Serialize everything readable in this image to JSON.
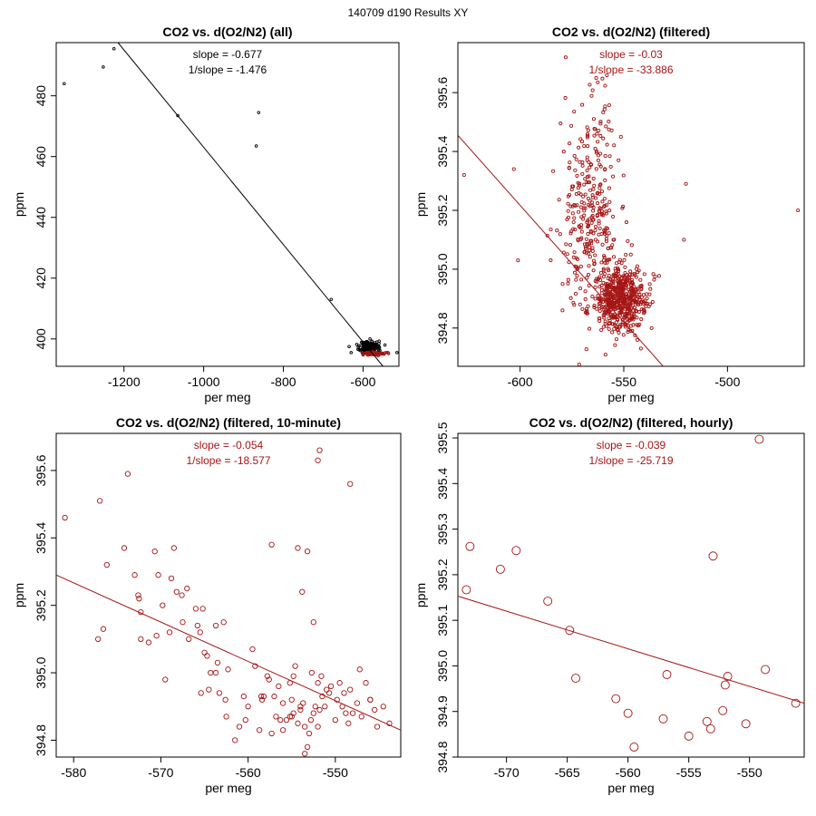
{
  "super_title": "140709   d190   Results XY",
  "colors": {
    "red": "#a51515",
    "black": "#000000"
  },
  "chart_data": [
    {
      "type": "scatter",
      "title": "CO2 vs. d(O2/N2) (all)",
      "xlabel": "per meg",
      "ylabel": "ppm",
      "xlim": [
        -1370,
        -510
      ],
      "ylim": [
        391,
        497.5
      ],
      "xticks": [
        -1200,
        -1000,
        -800,
        -600
      ],
      "yticks": [
        400,
        420,
        440,
        460,
        480
      ],
      "annotations": [
        "slope = -0.677",
        "1/slope = -1.476"
      ],
      "annotation_color": "black",
      "fit_line": {
        "x": [
          -1215,
          -550
        ],
        "y": [
          497.5,
          391
        ],
        "color": "black"
      },
      "series": [
        {
          "name": "all",
          "color": "black",
          "marker_radius": 1.3,
          "x": [
            -1350,
            -1252,
            -1225,
            -1065,
            -862,
            -868,
            -680
          ],
          "y": [
            484,
            489.5,
            495.5,
            473.5,
            474.5,
            463.5,
            413
          ]
        },
        {
          "name": "all-cluster",
          "color": "black",
          "marker_radius": 1.3,
          "cluster": {
            "n": 200,
            "cx": -585,
            "cy": 397.3,
            "sx": 11,
            "sy": 1.0,
            "seed": 11
          },
          "x": [
            -560,
            -565,
            -545,
            -635,
            -630,
            -515
          ],
          "y": [
            398.5,
            399.0,
            398.0,
            397.5,
            395.5,
            395.5
          ]
        },
        {
          "name": "filtered",
          "color": "red",
          "marker_radius": 1.3,
          "cluster": {
            "n": 130,
            "cx": -570,
            "cy": 395.2,
            "sx": 12,
            "sy": 0.25,
            "seed": 12
          },
          "x": [],
          "y": []
        }
      ]
    },
    {
      "type": "scatter",
      "title": "CO2 vs. d(O2/N2) (filtered)",
      "xlabel": "per meg",
      "ylabel": "ppm",
      "xlim": [
        -630,
        -463
      ],
      "ylim": [
        394.67,
        395.77
      ],
      "xticks": [
        -600,
        -550,
        -500
      ],
      "yticks": [
        394.8,
        395.0,
        395.2,
        395.4,
        395.6
      ],
      "ytick_labels": [
        "394.8",
        "395.0",
        "395.2",
        "395.4",
        "395.6"
      ],
      "annotations": [
        "slope = -0.03",
        "1/slope = -33.886"
      ],
      "annotation_color": "red",
      "fit_line": {
        "x": [
          -630,
          -531
        ],
        "y": [
          395.455,
          394.67
        ],
        "color": "red"
      },
      "series": [
        {
          "name": "filtered-dense",
          "color": "red",
          "marker_radius": 1.6,
          "cluster": {
            "n": 520,
            "cx": -551,
            "cy": 394.9,
            "sx": 6.5,
            "sy": 0.055,
            "seed": 21
          },
          "x": [],
          "y": []
        },
        {
          "name": "filtered-spread",
          "color": "red",
          "marker_radius": 1.6,
          "cluster": {
            "n": 330,
            "cx": -566,
            "cy": 395.18,
            "sx": 7,
            "sy": 0.19,
            "seed": 22
          },
          "x": [
            -627,
            -603,
            -601,
            -578,
            -520,
            -521,
            -466
          ],
          "y": [
            395.32,
            395.34,
            395.03,
            395.72,
            395.29,
            395.1,
            395.2
          ]
        }
      ]
    },
    {
      "type": "scatter",
      "title": "CO2 vs. d(O2/N2) (filtered, 10-minute)",
      "xlabel": "per meg",
      "ylabel": "ppm",
      "xlim": [
        -582,
        -542.5
      ],
      "ylim": [
        394.75,
        395.71
      ],
      "xticks": [
        -580,
        -570,
        -560,
        -550
      ],
      "yticks": [
        394.8,
        395.0,
        395.2,
        395.4,
        395.6
      ],
      "ytick_labels": [
        "394.8",
        "395.0",
        "395.2",
        "395.4",
        "395.6"
      ],
      "annotations": [
        "slope = -0.054",
        "1/slope = -18.577"
      ],
      "annotation_color": "red",
      "fit_line": {
        "x": [
          -582,
          -542.5
        ],
        "y": [
          395.29,
          394.83
        ],
        "color": "red"
      },
      "series": [
        {
          "name": "10-minute",
          "color": "red",
          "marker_radius": 2.7,
          "x": [
            -581,
            -577,
            -576.2,
            -573.8,
            -577.2,
            -576.6,
            -574.2,
            -573,
            -572.6,
            -572.5,
            -572.3,
            -570.7,
            -570.5,
            -569.8,
            -569,
            -568.5,
            -568.2,
            -567.6,
            -567,
            -566,
            -565.8,
            -565.5,
            -565.2,
            -565.0,
            -564.7,
            -564.3,
            -563.7,
            -563.5,
            -563.3,
            -562.8,
            -562.6,
            -562.3,
            -572.3,
            -571.4,
            -570.3,
            -569.5,
            -568.8,
            -567.5,
            -566.8,
            -565.4,
            -564.5,
            -563.7,
            -562.5,
            -561.5,
            -561.0,
            -560.5,
            -560.3,
            -560.0,
            -559.5,
            -559.2,
            -558.7,
            -558.4,
            -558.2,
            -557.8,
            -557.3,
            -557.0,
            -556.8,
            -556.5,
            -556.0,
            -555.6,
            -555.2,
            -555.0,
            -554.8,
            -554.6,
            -554.3,
            -554.0,
            -553.7,
            -553.5,
            -553.2,
            -553.0,
            -552.8,
            -552.5,
            -552.3,
            -552.0,
            -551.8,
            -551.5,
            -551.2,
            -551.0,
            -550.5,
            -550.0,
            -549.5,
            -549.2,
            -549.0,
            -548.5,
            -548.3,
            -548.0,
            -547.5,
            -547.0,
            -546.5,
            -546.0,
            -545.5,
            -545.2,
            -544.5,
            -543.8,
            -557.3,
            -554.3,
            -553.2,
            -552.5,
            -552.0,
            -548.3,
            -551.8,
            -552.0,
            -553.8,
            -552.7,
            -556.0,
            -555.0,
            -555.2,
            -556.3,
            -554.8,
            -554.0,
            -553.5,
            -551.6,
            -550.7,
            -549.8,
            -548.8,
            -547.2,
            -546.0,
            -557.6,
            -558.5
          ],
          "y": [
            395.46,
            395.51,
            395.32,
            395.59,
            395.1,
            395.13,
            395.37,
            395.29,
            395.23,
            395.22,
            395.18,
            395.36,
            395.11,
            395.2,
            395.12,
            395.37,
            395.24,
            395.23,
            395.25,
            395.19,
            395.14,
            395.12,
            395.19,
            395.06,
            395.05,
            395.0,
            395.14,
            395.03,
            394.94,
            395.15,
            394.92,
            395.01,
            395.1,
            395.09,
            395.29,
            394.98,
            395.28,
            395.15,
            395.1,
            394.94,
            394.95,
            395.0,
            394.87,
            394.8,
            394.84,
            394.93,
            394.86,
            394.9,
            395.07,
            395.02,
            394.83,
            394.92,
            394.93,
            394.99,
            394.82,
            394.93,
            394.87,
            394.96,
            394.91,
            394.86,
            394.97,
            394.92,
            394.99,
            395.02,
            394.85,
            394.89,
            394.91,
            394.76,
            394.78,
            394.82,
            394.86,
            394.88,
            394.9,
            394.84,
            394.89,
            394.93,
            394.9,
            394.95,
            394.96,
            394.86,
            394.97,
            394.9,
            394.94,
            394.85,
            394.95,
            394.88,
            394.91,
            394.87,
            394.97,
            394.92,
            394.89,
            394.84,
            394.9,
            394.85,
            395.38,
            395.37,
            395.36,
            395.15,
            395.63,
            395.56,
            395.66,
            394.97,
            395.24,
            395.0,
            394.83,
            394.87,
            394.87,
            394.86,
            394.88,
            394.9,
            394.84,
            394.99,
            394.94,
            394.92,
            394.88,
            395.01,
            394.92,
            394.98,
            394.93
          ]
        }
      ]
    },
    {
      "type": "scatter",
      "title": "CO2 vs. d(O2/N2) (filtered, hourly)",
      "xlabel": "per meg",
      "ylabel": "ppm",
      "xlim": [
        -574,
        -545.5
      ],
      "ylim": [
        394.8,
        395.51
      ],
      "xticks": [
        -570,
        -565,
        -560,
        -555,
        -550
      ],
      "yticks": [
        394.8,
        394.9,
        395.0,
        395.1,
        395.2,
        395.3,
        395.4,
        395.5
      ],
      "ytick_labels": [
        "394.8",
        "394.9",
        "395.0",
        "395.1",
        "395.2",
        "395.3",
        "395.4",
        "395.5"
      ],
      "annotations": [
        "slope = -0.039",
        "1/slope = -25.719"
      ],
      "annotation_color": "red",
      "fit_line": {
        "x": [
          -574,
          -545.5
        ],
        "y": [
          395.153,
          394.918
        ],
        "color": "red"
      },
      "series": [
        {
          "name": "hourly",
          "color": "red",
          "marker_radius": 4.5,
          "x": [
            -573.3,
            -573,
            -570.5,
            -569.2,
            -566.6,
            -564.8,
            -564.3,
            -561,
            -560,
            -559.5,
            -557.1,
            -556.8,
            -555,
            -553.5,
            -553.2,
            -553,
            -552.2,
            -552,
            -551.8,
            -550.3,
            -549.2,
            -548.7,
            -546.2
          ],
          "y": [
            395.167,
            395.262,
            395.212,
            395.253,
            395.142,
            395.078,
            394.973,
            394.928,
            394.896,
            394.822,
            394.884,
            394.981,
            394.846,
            394.878,
            394.862,
            395.241,
            394.902,
            394.958,
            394.977,
            394.873,
            395.497,
            394.992,
            394.918
          ]
        }
      ]
    }
  ]
}
